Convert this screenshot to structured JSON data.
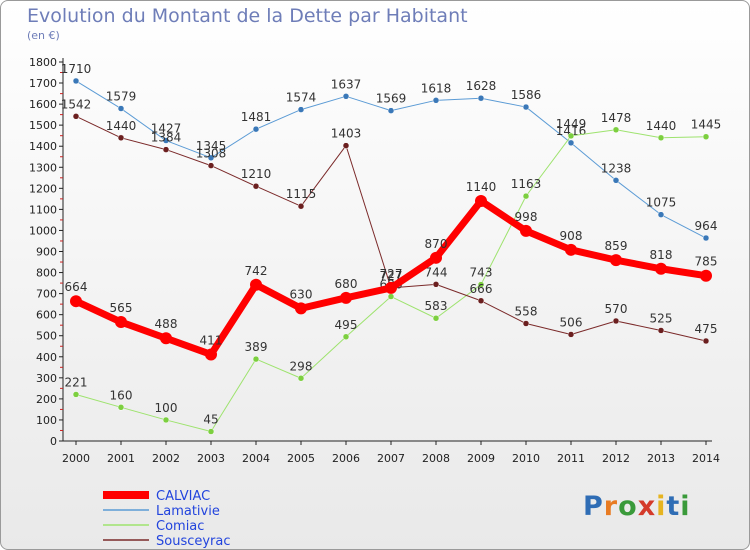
{
  "title": "Evolution du Montant de la Dette par Habitant",
  "subtitle": "(en €)",
  "logo": {
    "text": "Proxiti",
    "letter_colors": [
      "#2f6db5",
      "#e87b22",
      "#3a9a3a",
      "#d43a2a",
      "#e6b420",
      "#2f6db5",
      "#3a9a3a"
    ]
  },
  "chart_data": {
    "type": "line",
    "title": "Evolution du Montant de la Dette par Habitant",
    "subtitle": "(en €)",
    "x": [
      "2000",
      "2001",
      "2002",
      "2003",
      "2004",
      "2005",
      "2006",
      "2007",
      "2008",
      "2009",
      "2010",
      "2011",
      "2012",
      "2013",
      "2014"
    ],
    "ylim": [
      0,
      1800
    ],
    "y_ticks": [
      0,
      100,
      200,
      300,
      400,
      500,
      600,
      700,
      800,
      900,
      1000,
      1100,
      1200,
      1300,
      1400,
      1500,
      1600,
      1700,
      1800
    ],
    "grid": false,
    "legend_position": "bottom-left",
    "series": [
      {
        "name": "Lamativie",
        "color": "#5b9bd5",
        "marker_color": "#3a78b8",
        "width": 1,
        "values": [
          1710,
          1579,
          1427,
          1345,
          1481,
          1574,
          1637,
          1569,
          1618,
          1628,
          1586,
          1416,
          1238,
          1075,
          964
        ]
      },
      {
        "name": "Comiac",
        "color": "#9ee36e",
        "marker_color": "#7ccf3f",
        "width": 1,
        "values": [
          221,
          160,
          100,
          45,
          389,
          298,
          495,
          686,
          583,
          743,
          1163,
          1449,
          1478,
          1440,
          1445
        ]
      },
      {
        "name": "Sousceyrac",
        "color": "#7b2a2a",
        "marker_color": "#6b1f1f",
        "width": 1,
        "values": [
          1542,
          1440,
          1384,
          1308,
          1210,
          1115,
          1403,
          727,
          744,
          666,
          558,
          506,
          570,
          525,
          475
        ]
      },
      {
        "name": "CALVIAC",
        "color": "#ff0000",
        "marker_color": "#ff0000",
        "width": 7,
        "values": [
          664,
          565,
          488,
          411,
          742,
          630,
          680,
          727,
          870,
          1140,
          998,
          908,
          859,
          818,
          785
        ]
      }
    ]
  }
}
